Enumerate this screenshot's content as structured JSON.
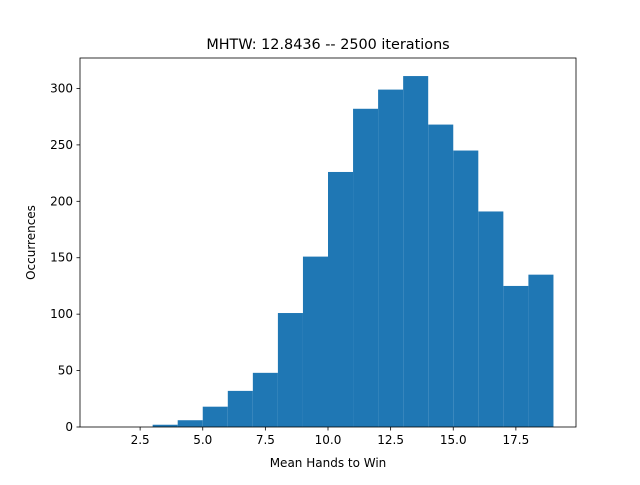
{
  "chart_data": {
    "type": "bar",
    "title": "MHTW: 12.8436 -- 2500 iterations",
    "xlabel": "Mean Hands to Win",
    "ylabel": "Occurrences",
    "bins": [
      {
        "x0": 1,
        "x1": 2,
        "value": 0
      },
      {
        "x0": 2,
        "x1": 3,
        "value": 0
      },
      {
        "x0": 3,
        "x1": 4,
        "value": 2
      },
      {
        "x0": 4,
        "x1": 5,
        "value": 6
      },
      {
        "x0": 5,
        "x1": 6,
        "value": 18
      },
      {
        "x0": 6,
        "x1": 7,
        "value": 32
      },
      {
        "x0": 7,
        "x1": 8,
        "value": 48
      },
      {
        "x0": 8,
        "x1": 9,
        "value": 101
      },
      {
        "x0": 9,
        "x1": 10,
        "value": 151
      },
      {
        "x0": 10,
        "x1": 11,
        "value": 226
      },
      {
        "x0": 11,
        "x1": 12,
        "value": 282
      },
      {
        "x0": 12,
        "x1": 13,
        "value": 299
      },
      {
        "x0": 13,
        "x1": 14,
        "value": 311
      },
      {
        "x0": 14,
        "x1": 15,
        "value": 268
      },
      {
        "x0": 15,
        "x1": 16,
        "value": 245
      },
      {
        "x0": 16,
        "x1": 17,
        "value": 191
      },
      {
        "x0": 17,
        "x1": 18,
        "value": 125
      },
      {
        "x0": 18,
        "x1": 19,
        "value": 135
      }
    ],
    "xlim": [
      0.1,
      19.9
    ],
    "ylim": [
      0,
      327
    ],
    "xticks": [
      {
        "value": 2.5,
        "label": "2.5"
      },
      {
        "value": 5.0,
        "label": "5.0"
      },
      {
        "value": 7.5,
        "label": "7.5"
      },
      {
        "value": 10.0,
        "label": "10.0"
      },
      {
        "value": 12.5,
        "label": "12.5"
      },
      {
        "value": 15.0,
        "label": "15.0"
      },
      {
        "value": 17.5,
        "label": "17.5"
      }
    ],
    "yticks": [
      {
        "value": 0,
        "label": "0"
      },
      {
        "value": 50,
        "label": "50"
      },
      {
        "value": 100,
        "label": "100"
      },
      {
        "value": 150,
        "label": "150"
      },
      {
        "value": 200,
        "label": "200"
      },
      {
        "value": 250,
        "label": "250"
      },
      {
        "value": 300,
        "label": "300"
      }
    ],
    "bar_color": "#1f77b4",
    "grid": false,
    "legend": "none"
  }
}
